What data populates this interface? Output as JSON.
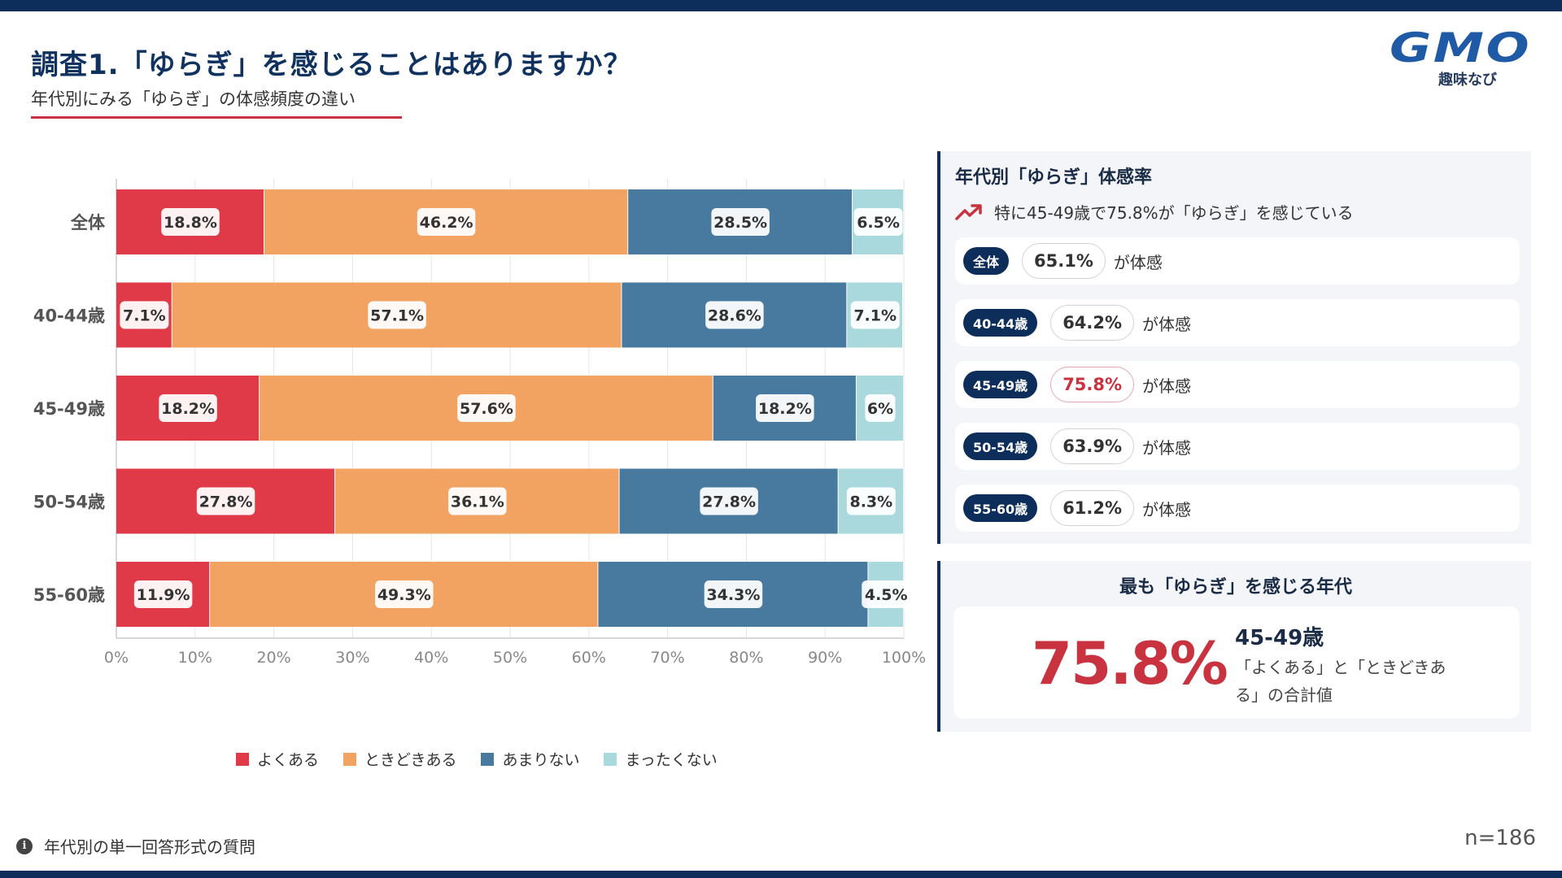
{
  "header": {
    "title": "調査1.「ゆらぎ」を感じることはありますか？",
    "subtitle": "年代別にみる「ゆらぎ」の体感頻度の違い"
  },
  "logo": {
    "brand": "GMO",
    "service": "趣味なび"
  },
  "colors": {
    "often": "#e03a48",
    "sometimes": "#f2a361",
    "rarely": "#477a9e",
    "never": "#a9d9dd",
    "navy": "#0d2d5a",
    "accent_red": "#c9323f"
  },
  "chart_data": {
    "type": "bar",
    "orientation": "horizontal",
    "stacked": true,
    "categories": [
      "全体",
      "40-44歳",
      "45-49歳",
      "50-54歳",
      "55-60歳"
    ],
    "series": [
      {
        "name": "よくある",
        "values": [
          18.8,
          7.1,
          18.2,
          27.8,
          11.9
        ],
        "labels": [
          "18.8%",
          "7.1%",
          "18.2%",
          "27.8%",
          "11.9%"
        ]
      },
      {
        "name": "ときどきある",
        "values": [
          46.2,
          57.1,
          57.6,
          36.1,
          49.3
        ],
        "labels": [
          "46.2%",
          "57.1%",
          "57.6%",
          "36.1%",
          "49.3%"
        ]
      },
      {
        "name": "あまりない",
        "values": [
          28.5,
          28.6,
          18.2,
          27.8,
          34.3
        ],
        "labels": [
          "28.5%",
          "28.6%",
          "18.2%",
          "27.8%",
          "34.3%"
        ]
      },
      {
        "name": "まったくない",
        "values": [
          6.5,
          7.1,
          6,
          8.3,
          4.5
        ],
        "labels": [
          "6.5%",
          "7.1%",
          "6%",
          "8.3%",
          "4.5%"
        ]
      }
    ],
    "xlim": [
      0,
      100
    ],
    "xticks": [
      "0%",
      "10%",
      "20%",
      "30%",
      "40%",
      "50%",
      "60%",
      "70%",
      "80%",
      "90%",
      "100%"
    ],
    "grid": true,
    "legend_position": "bottom"
  },
  "legend": {
    "items": [
      "よくある",
      "ときどきある",
      "あまりない",
      "まったくない"
    ]
  },
  "panel_rate": {
    "title": "年代別「ゆらぎ」体感率",
    "trend_text": "特に45-49歳で75.8%が「ゆらぎ」を感じている",
    "rows": [
      {
        "group": "全体",
        "value": "65.1%",
        "suffix": "が体感"
      },
      {
        "group": "40-44歳",
        "value": "64.2%",
        "suffix": "が体感"
      },
      {
        "group": "45-49歳",
        "value": "75.8%",
        "suffix": "が体感"
      },
      {
        "group": "50-54歳",
        "value": "63.9%",
        "suffix": "が体感"
      },
      {
        "group": "55-60歳",
        "value": "61.2%",
        "suffix": "が体感"
      }
    ]
  },
  "panel_top": {
    "title": "最も「ゆらぎ」を感じる年代",
    "value": "75.8%",
    "age": "45-49歳",
    "description": "「よくある」と「ときどきある」の合計値"
  },
  "footer": {
    "note": "年代別の単一回答形式の質問",
    "sample": "n=186"
  }
}
